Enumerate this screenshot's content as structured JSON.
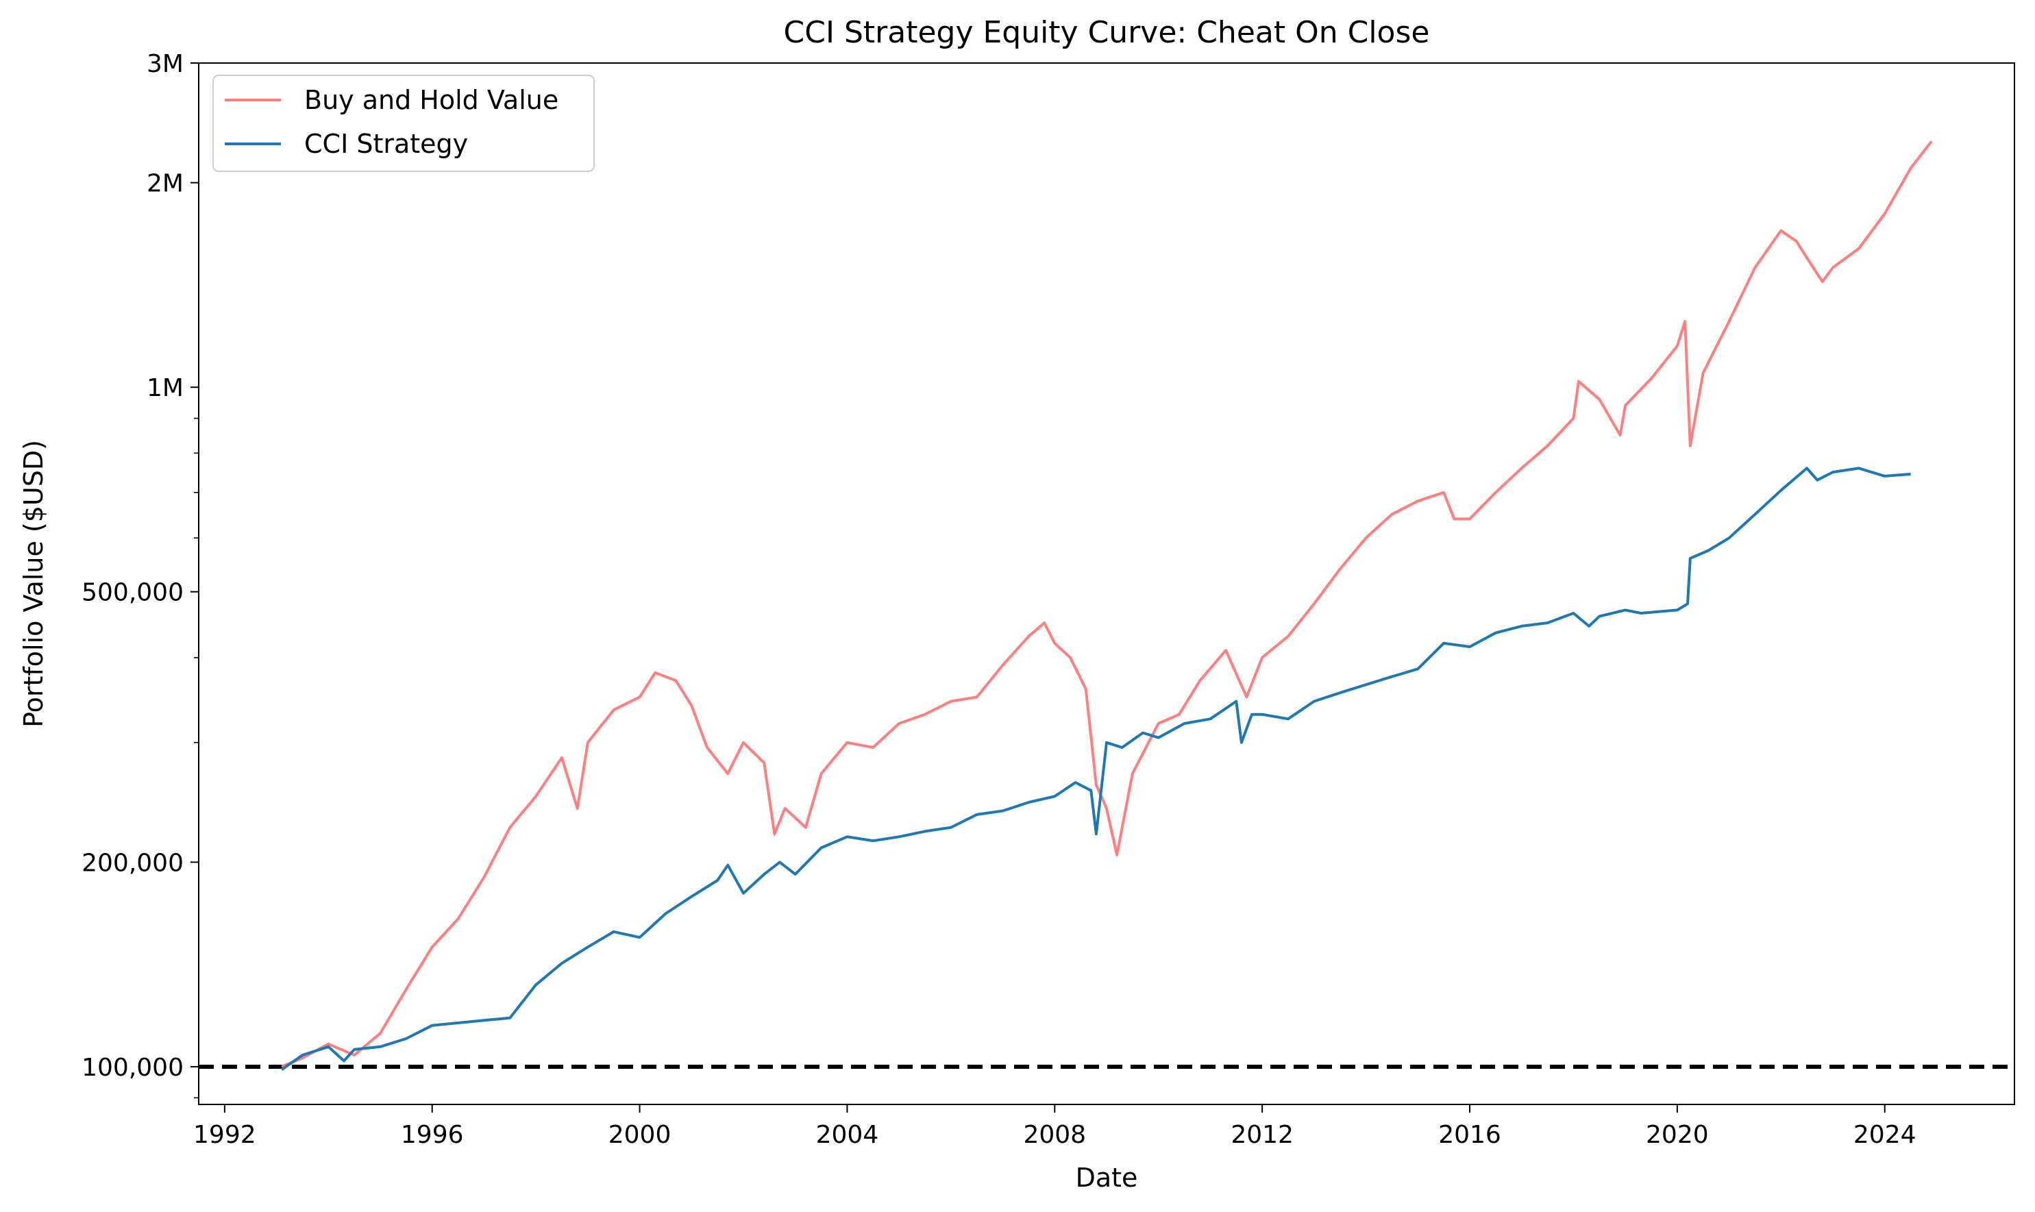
{
  "chart_data": {
    "type": "line",
    "title": "CCI Strategy Equity Curve: Cheat On Close",
    "xlabel": "Date",
    "ylabel": "Portfolio Value ($USD)",
    "y_scale": "log",
    "xlim": [
      1991.5,
      2026.5
    ],
    "ylim": [
      88000,
      3000000
    ],
    "x_ticks": [
      1992,
      1996,
      2000,
      2004,
      2008,
      2012,
      2016,
      2020,
      2024
    ],
    "y_ticks": [
      {
        "value": 100000,
        "label": "100,000"
      },
      {
        "value": 200000,
        "label": "200,000"
      },
      {
        "value": 500000,
        "label": "500,000"
      },
      {
        "value": 1000000,
        "label": "1M"
      },
      {
        "value": 2000000,
        "label": "2M"
      },
      {
        "value": 3000000,
        "label": "3M"
      }
    ],
    "minor_y_ticks": [
      90000,
      300000,
      400000,
      600000,
      700000,
      800000,
      900000
    ],
    "legend_position": "top-left",
    "reference_line": {
      "y": 100000,
      "style": "dashed",
      "color": "#000000"
    },
    "grid": false,
    "series": [
      {
        "name": "Buy and Hold Value",
        "color": "#ff7f7f",
        "points": [
          [
            1993.1,
            100000
          ],
          [
            1993.5,
            103000
          ],
          [
            1994.0,
            108000
          ],
          [
            1994.5,
            104000
          ],
          [
            1995.0,
            112000
          ],
          [
            1995.5,
            130000
          ],
          [
            1996.0,
            150000
          ],
          [
            1996.5,
            165000
          ],
          [
            1997.0,
            190000
          ],
          [
            1997.5,
            225000
          ],
          [
            1998.0,
            250000
          ],
          [
            1998.5,
            285000
          ],
          [
            1998.8,
            240000
          ],
          [
            1999.0,
            300000
          ],
          [
            1999.5,
            335000
          ],
          [
            2000.0,
            350000
          ],
          [
            2000.3,
            380000
          ],
          [
            2000.7,
            370000
          ],
          [
            2001.0,
            340000
          ],
          [
            2001.3,
            295000
          ],
          [
            2001.7,
            270000
          ],
          [
            2002.0,
            300000
          ],
          [
            2002.4,
            280000
          ],
          [
            2002.6,
            220000
          ],
          [
            2002.8,
            240000
          ],
          [
            2003.2,
            225000
          ],
          [
            2003.5,
            270000
          ],
          [
            2004.0,
            300000
          ],
          [
            2004.5,
            295000
          ],
          [
            2005.0,
            320000
          ],
          [
            2005.5,
            330000
          ],
          [
            2006.0,
            345000
          ],
          [
            2006.5,
            350000
          ],
          [
            2007.0,
            390000
          ],
          [
            2007.5,
            430000
          ],
          [
            2007.8,
            450000
          ],
          [
            2008.0,
            420000
          ],
          [
            2008.3,
            400000
          ],
          [
            2008.6,
            360000
          ],
          [
            2008.8,
            260000
          ],
          [
            2009.0,
            240000
          ],
          [
            2009.2,
            205000
          ],
          [
            2009.5,
            270000
          ],
          [
            2010.0,
            320000
          ],
          [
            2010.4,
            330000
          ],
          [
            2010.8,
            370000
          ],
          [
            2011.3,
            410000
          ],
          [
            2011.7,
            350000
          ],
          [
            2012.0,
            400000
          ],
          [
            2012.5,
            430000
          ],
          [
            2013.0,
            480000
          ],
          [
            2013.5,
            540000
          ],
          [
            2014.0,
            600000
          ],
          [
            2014.5,
            650000
          ],
          [
            2015.0,
            680000
          ],
          [
            2015.5,
            700000
          ],
          [
            2015.7,
            640000
          ],
          [
            2016.0,
            640000
          ],
          [
            2016.5,
            700000
          ],
          [
            2017.0,
            760000
          ],
          [
            2017.5,
            820000
          ],
          [
            2018.0,
            900000
          ],
          [
            2018.1,
            1020000
          ],
          [
            2018.5,
            960000
          ],
          [
            2018.9,
            850000
          ],
          [
            2019.0,
            940000
          ],
          [
            2019.5,
            1030000
          ],
          [
            2020.0,
            1150000
          ],
          [
            2020.15,
            1250000
          ],
          [
            2020.25,
            820000
          ],
          [
            2020.5,
            1050000
          ],
          [
            2021.0,
            1250000
          ],
          [
            2021.5,
            1500000
          ],
          [
            2022.0,
            1700000
          ],
          [
            2022.3,
            1640000
          ],
          [
            2022.5,
            1550000
          ],
          [
            2022.8,
            1430000
          ],
          [
            2023.0,
            1500000
          ],
          [
            2023.5,
            1600000
          ],
          [
            2024.0,
            1800000
          ],
          [
            2024.5,
            2100000
          ],
          [
            2024.9,
            2300000
          ]
        ]
      },
      {
        "name": "CCI Strategy",
        "color": "#1f77b4",
        "points": [
          [
            1993.1,
            99000
          ],
          [
            1993.5,
            104000
          ],
          [
            1994.0,
            107000
          ],
          [
            1994.3,
            102000
          ],
          [
            1994.5,
            106000
          ],
          [
            1995.0,
            107000
          ],
          [
            1995.5,
            110000
          ],
          [
            1996.0,
            115000
          ],
          [
            1996.5,
            116000
          ],
          [
            1997.0,
            117000
          ],
          [
            1997.5,
            118000
          ],
          [
            1998.0,
            132000
          ],
          [
            1998.5,
            142000
          ],
          [
            1999.0,
            150000
          ],
          [
            1999.5,
            158000
          ],
          [
            2000.0,
            155000
          ],
          [
            2000.5,
            168000
          ],
          [
            2001.0,
            178000
          ],
          [
            2001.5,
            188000
          ],
          [
            2001.7,
            198000
          ],
          [
            2002.0,
            180000
          ],
          [
            2002.4,
            192000
          ],
          [
            2002.7,
            200000
          ],
          [
            2003.0,
            192000
          ],
          [
            2003.5,
            210000
          ],
          [
            2004.0,
            218000
          ],
          [
            2004.5,
            215000
          ],
          [
            2005.0,
            218000
          ],
          [
            2005.5,
            222000
          ],
          [
            2006.0,
            225000
          ],
          [
            2006.5,
            235000
          ],
          [
            2007.0,
            238000
          ],
          [
            2007.5,
            245000
          ],
          [
            2008.0,
            250000
          ],
          [
            2008.4,
            262000
          ],
          [
            2008.7,
            255000
          ],
          [
            2008.8,
            220000
          ],
          [
            2009.0,
            300000
          ],
          [
            2009.3,
            295000
          ],
          [
            2009.7,
            310000
          ],
          [
            2010.0,
            305000
          ],
          [
            2010.5,
            320000
          ],
          [
            2011.0,
            325000
          ],
          [
            2011.5,
            345000
          ],
          [
            2011.6,
            300000
          ],
          [
            2011.8,
            330000
          ],
          [
            2012.0,
            330000
          ],
          [
            2012.5,
            325000
          ],
          [
            2013.0,
            345000
          ],
          [
            2013.5,
            355000
          ],
          [
            2014.0,
            365000
          ],
          [
            2014.5,
            375000
          ],
          [
            2015.0,
            385000
          ],
          [
            2015.5,
            420000
          ],
          [
            2016.0,
            415000
          ],
          [
            2016.5,
            435000
          ],
          [
            2017.0,
            445000
          ],
          [
            2017.5,
            450000
          ],
          [
            2018.0,
            465000
          ],
          [
            2018.3,
            445000
          ],
          [
            2018.5,
            460000
          ],
          [
            2019.0,
            470000
          ],
          [
            2019.3,
            465000
          ],
          [
            2020.0,
            470000
          ],
          [
            2020.2,
            480000
          ],
          [
            2020.25,
            560000
          ],
          [
            2020.6,
            575000
          ],
          [
            2021.0,
            600000
          ],
          [
            2021.5,
            650000
          ],
          [
            2022.0,
            705000
          ],
          [
            2022.5,
            760000
          ],
          [
            2022.7,
            730000
          ],
          [
            2023.0,
            750000
          ],
          [
            2023.5,
            760000
          ],
          [
            2024.0,
            740000
          ],
          [
            2024.5,
            745000
          ]
        ]
      }
    ]
  }
}
